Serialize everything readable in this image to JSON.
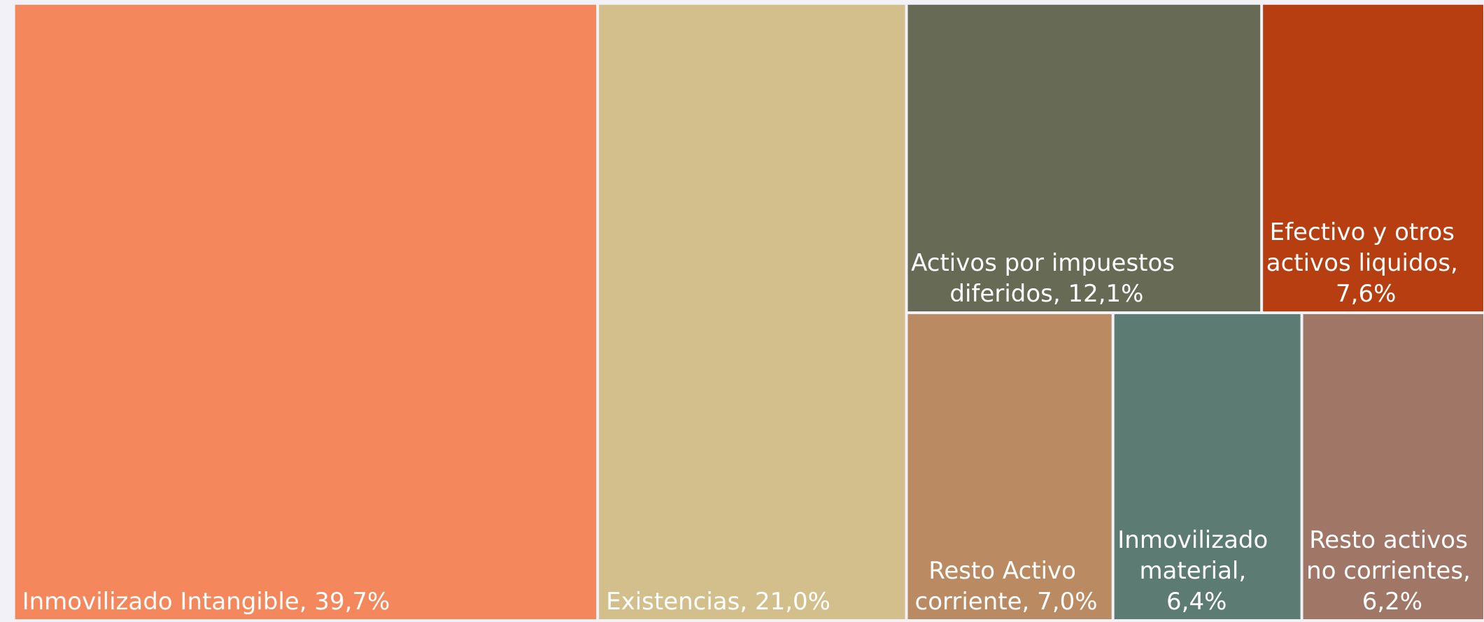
{
  "chart_data": {
    "type": "treemap",
    "values": [
      39.7,
      21.0,
      12.1,
      7.6,
      7.0,
      6.4,
      6.2
    ],
    "value_labels": [
      "Inmovilizado Intangible, 39,7%",
      "Existencias, 21,0%",
      "Activos por impuestos diferidos, 12,1%",
      "Efectivo y otros activos liquidos, 7,6%",
      "Resto Activo corriente, 7,0%",
      "Inmovilizado material, 6,4%",
      "Resto activos no corrientes, 6,2%"
    ],
    "colors": [
      "#f4875c",
      "#d3bf8c",
      "#676b56",
      "#b73e10",
      "#ba8a62",
      "#5c7c73",
      "#a07666"
    ]
  }
}
